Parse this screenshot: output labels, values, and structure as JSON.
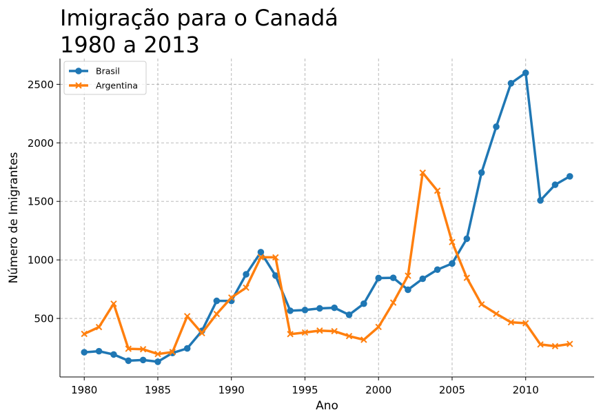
{
  "chart_data": {
    "type": "line",
    "title": [
      "Imigração para o Canadá",
      "1980 a 2013"
    ],
    "xlabel": "Ano",
    "ylabel": "Número de Imigrantes",
    "x": [
      1980,
      1981,
      1982,
      1983,
      1984,
      1985,
      1986,
      1987,
      1988,
      1989,
      1990,
      1991,
      1992,
      1993,
      1994,
      1995,
      1996,
      1997,
      1998,
      1999,
      2000,
      2001,
      2002,
      2003,
      2004,
      2005,
      2006,
      2007,
      2008,
      2009,
      2010,
      2011,
      2012,
      2013
    ],
    "xlim": [
      1978.35,
      2014.65
    ],
    "ylim": [
      0,
      2720
    ],
    "xticks": [
      "1980",
      "1985",
      "1990",
      "1995",
      "2000",
      "2005",
      "2010"
    ],
    "yticks": [
      "500",
      "1000",
      "1500",
      "2000",
      "2500"
    ],
    "grid": true,
    "legend_position": "top-left",
    "series": [
      {
        "name": "Brasil",
        "color": "#1f77b4",
        "marker": "circle",
        "values": [
          211,
          220,
          192,
          139,
          145,
          130,
          205,
          244,
          394,
          650,
          650,
          877,
          1066,
          866,
          566,
          572,
          586,
          591,
          531,
          626,
          845,
          847,
          745,
          839,
          917,
          969,
          1181,
          1746,
          2138,
          2509,
          2598,
          1508,
          1642,
          1714
        ]
      },
      {
        "name": "Argentina",
        "color": "#ff7f0e",
        "marker": "x",
        "values": [
          368,
          426,
          626,
          241,
          237,
          196,
          213,
          519,
          374,
          538,
          678,
          763,
          1023,
          1022,
          366,
          380,
          396,
          391,
          349,
          318,
          427,
          635,
          865,
          1745,
          1591,
          1153,
          847,
          620,
          540,
          467,
          459,
          278,
          263,
          282
        ]
      }
    ]
  }
}
